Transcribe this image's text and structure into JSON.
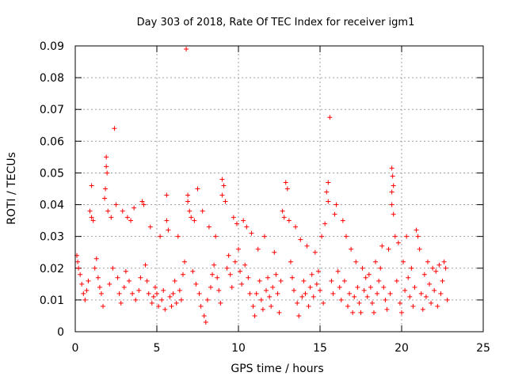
{
  "chart_data": {
    "type": "scatter",
    "title": "Day 303 of 2018, Rate Of TEC Index for receiver igm1",
    "xlabel": "GPS time / hours",
    "ylabel": "ROTI / TECUs",
    "xlim": [
      0,
      25
    ],
    "ylim": [
      0,
      0.09
    ],
    "xticks": [
      0,
      5,
      10,
      15,
      20,
      25
    ],
    "xtick_labels": [
      "0",
      "5",
      "10",
      "15",
      "20",
      "25"
    ],
    "yticks": [
      0,
      0.01,
      0.02,
      0.03,
      0.04,
      0.05,
      0.06,
      0.07,
      0.08,
      0.09
    ],
    "ytick_labels": [
      "0",
      "0.01",
      "0.02",
      "0.03",
      "0.04",
      "0.05",
      "0.06",
      "0.07",
      "0.08",
      "0.09"
    ],
    "grid": true,
    "marker": "+",
    "color": "#ff0000",
    "series": [
      {
        "name": "ROTI",
        "points": [
          [
            6.8,
            0.089
          ],
          [
            15.6,
            0.0675
          ],
          [
            2.4,
            0.064
          ],
          [
            1.9,
            0.055
          ],
          [
            1.9,
            0.052
          ],
          [
            1.95,
            0.05
          ],
          [
            19.4,
            0.0515
          ],
          [
            19.45,
            0.049
          ],
          [
            19.5,
            0.046
          ],
          [
            19.4,
            0.044
          ],
          [
            9.0,
            0.048
          ],
          [
            9.1,
            0.046
          ],
          [
            9.0,
            0.043
          ],
          [
            12.9,
            0.047
          ],
          [
            13.0,
            0.045
          ],
          [
            15.5,
            0.047
          ],
          [
            15.4,
            0.044
          ],
          [
            15.5,
            0.041
          ],
          [
            1.0,
            0.046
          ],
          [
            5.6,
            0.043
          ],
          [
            6.9,
            0.043
          ],
          [
            7.5,
            0.045
          ],
          [
            4.1,
            0.041
          ],
          [
            4.2,
            0.04
          ],
          [
            3.6,
            0.039
          ],
          [
            2.5,
            0.04
          ],
          [
            1.85,
            0.045
          ],
          [
            1.8,
            0.042
          ],
          [
            19.4,
            0.04
          ],
          [
            19.5,
            0.037
          ],
          [
            16.0,
            0.04
          ],
          [
            15.9,
            0.037
          ],
          [
            12.7,
            0.038
          ],
          [
            12.8,
            0.036
          ],
          [
            13.1,
            0.035
          ],
          [
            6.9,
            0.041
          ],
          [
            7.0,
            0.038
          ],
          [
            7.1,
            0.036
          ],
          [
            9.2,
            0.041
          ],
          [
            9.7,
            0.036
          ],
          [
            10.3,
            0.035
          ],
          [
            10.5,
            0.033
          ],
          [
            0.9,
            0.038
          ],
          [
            1.0,
            0.036
          ],
          [
            1.1,
            0.035
          ],
          [
            2.0,
            0.038
          ],
          [
            2.2,
            0.036
          ],
          [
            2.9,
            0.038
          ],
          [
            3.2,
            0.036
          ],
          [
            3.4,
            0.035
          ],
          [
            4.6,
            0.033
          ],
          [
            5.2,
            0.03
          ],
          [
            5.6,
            0.035
          ],
          [
            5.7,
            0.032
          ],
          [
            6.3,
            0.03
          ],
          [
            7.3,
            0.035
          ],
          [
            7.8,
            0.038
          ],
          [
            8.2,
            0.033
          ],
          [
            8.6,
            0.03
          ],
          [
            9.9,
            0.034
          ],
          [
            10.8,
            0.031
          ],
          [
            11.2,
            0.026
          ],
          [
            11.6,
            0.03
          ],
          [
            12.2,
            0.025
          ],
          [
            13.5,
            0.033
          ],
          [
            13.8,
            0.029
          ],
          [
            14.2,
            0.027
          ],
          [
            14.7,
            0.025
          ],
          [
            15.1,
            0.03
          ],
          [
            15.3,
            0.034
          ],
          [
            16.4,
            0.035
          ],
          [
            16.6,
            0.03
          ],
          [
            16.9,
            0.026
          ],
          [
            17.2,
            0.022
          ],
          [
            17.6,
            0.02
          ],
          [
            18.0,
            0.018
          ],
          [
            18.4,
            0.022
          ],
          [
            18.8,
            0.027
          ],
          [
            19.2,
            0.026
          ],
          [
            19.6,
            0.03
          ],
          [
            19.8,
            0.028
          ],
          [
            20.1,
            0.022
          ],
          [
            20.3,
            0.03
          ],
          [
            20.6,
            0.02
          ],
          [
            20.9,
            0.032
          ],
          [
            21.0,
            0.03
          ],
          [
            21.1,
            0.026
          ],
          [
            21.4,
            0.018
          ],
          [
            21.6,
            0.022
          ],
          [
            21.9,
            0.02
          ],
          [
            22.1,
            0.019
          ],
          [
            22.3,
            0.021
          ],
          [
            22.6,
            0.022
          ],
          [
            22.7,
            0.02
          ],
          [
            0.1,
            0.024
          ],
          [
            0.15,
            0.022
          ],
          [
            0.2,
            0.02
          ],
          [
            0.3,
            0.018
          ],
          [
            0.4,
            0.015
          ],
          [
            0.5,
            0.012
          ],
          [
            0.6,
            0.01
          ],
          [
            0.7,
            0.013
          ],
          [
            0.8,
            0.016
          ],
          [
            1.2,
            0.02
          ],
          [
            1.3,
            0.023
          ],
          [
            1.4,
            0.017
          ],
          [
            1.5,
            0.014
          ],
          [
            1.6,
            0.012
          ],
          [
            1.7,
            0.008
          ],
          [
            2.1,
            0.015
          ],
          [
            2.3,
            0.02
          ],
          [
            2.6,
            0.017
          ],
          [
            2.7,
            0.012
          ],
          [
            2.8,
            0.009
          ],
          [
            3.0,
            0.014
          ],
          [
            3.1,
            0.019
          ],
          [
            3.3,
            0.016
          ],
          [
            3.5,
            0.012
          ],
          [
            3.7,
            0.01
          ],
          [
            3.9,
            0.013
          ],
          [
            4.0,
            0.017
          ],
          [
            4.3,
            0.021
          ],
          [
            4.4,
            0.016
          ],
          [
            4.5,
            0.012
          ],
          [
            4.7,
            0.009
          ],
          [
            4.8,
            0.011
          ],
          [
            4.9,
            0.014
          ],
          [
            5.0,
            0.012
          ],
          [
            5.1,
            0.008
          ],
          [
            5.3,
            0.01
          ],
          [
            5.4,
            0.013
          ],
          [
            5.5,
            0.007
          ],
          [
            5.8,
            0.011
          ],
          [
            5.9,
            0.008
          ],
          [
            6.0,
            0.012
          ],
          [
            6.1,
            0.016
          ],
          [
            6.2,
            0.009
          ],
          [
            6.4,
            0.013
          ],
          [
            6.5,
            0.01
          ],
          [
            6.6,
            0.018
          ],
          [
            6.7,
            0.022
          ],
          [
            7.2,
            0.019
          ],
          [
            7.4,
            0.015
          ],
          [
            7.6,
            0.012
          ],
          [
            7.7,
            0.008
          ],
          [
            7.9,
            0.005
          ],
          [
            8.0,
            0.003
          ],
          [
            8.1,
            0.01
          ],
          [
            8.3,
            0.014
          ],
          [
            8.4,
            0.018
          ],
          [
            8.5,
            0.021
          ],
          [
            8.7,
            0.017
          ],
          [
            8.8,
            0.013
          ],
          [
            8.9,
            0.009
          ],
          [
            9.3,
            0.02
          ],
          [
            9.4,
            0.024
          ],
          [
            9.5,
            0.018
          ],
          [
            9.6,
            0.014
          ],
          [
            9.8,
            0.022
          ],
          [
            10.0,
            0.026
          ],
          [
            10.1,
            0.019
          ],
          [
            10.2,
            0.015
          ],
          [
            10.4,
            0.021
          ],
          [
            10.6,
            0.017
          ],
          [
            10.7,
            0.012
          ],
          [
            10.9,
            0.008
          ],
          [
            11.0,
            0.005
          ],
          [
            11.1,
            0.012
          ],
          [
            11.3,
            0.016
          ],
          [
            11.4,
            0.01
          ],
          [
            11.5,
            0.007
          ],
          [
            11.7,
            0.013
          ],
          [
            11.8,
            0.017
          ],
          [
            11.9,
            0.011
          ],
          [
            12.0,
            0.008
          ],
          [
            12.1,
            0.014
          ],
          [
            12.3,
            0.018
          ],
          [
            12.4,
            0.012
          ],
          [
            12.5,
            0.006
          ],
          [
            12.6,
            0.016
          ],
          [
            13.2,
            0.022
          ],
          [
            13.3,
            0.017
          ],
          [
            13.4,
            0.013
          ],
          [
            13.6,
            0.009
          ],
          [
            13.7,
            0.005
          ],
          [
            13.9,
            0.011
          ],
          [
            14.0,
            0.016
          ],
          [
            14.1,
            0.012
          ],
          [
            14.3,
            0.008
          ],
          [
            14.4,
            0.014
          ],
          [
            14.5,
            0.018
          ],
          [
            14.6,
            0.011
          ],
          [
            14.8,
            0.015
          ],
          [
            14.9,
            0.019
          ],
          [
            15.0,
            0.013
          ],
          [
            15.2,
            0.009
          ],
          [
            15.7,
            0.016
          ],
          [
            15.8,
            0.012
          ],
          [
            16.1,
            0.019
          ],
          [
            16.2,
            0.014
          ],
          [
            16.3,
            0.01
          ],
          [
            16.5,
            0.016
          ],
          [
            16.7,
            0.008
          ],
          [
            16.8,
            0.012
          ],
          [
            17.0,
            0.006
          ],
          [
            17.1,
            0.011
          ],
          [
            17.3,
            0.014
          ],
          [
            17.4,
            0.009
          ],
          [
            17.5,
            0.006
          ],
          [
            17.7,
            0.013
          ],
          [
            17.8,
            0.017
          ],
          [
            17.9,
            0.011
          ],
          [
            18.1,
            0.014
          ],
          [
            18.2,
            0.009
          ],
          [
            18.3,
            0.006
          ],
          [
            18.5,
            0.012
          ],
          [
            18.6,
            0.016
          ],
          [
            18.7,
            0.02
          ],
          [
            18.9,
            0.014
          ],
          [
            19.0,
            0.01
          ],
          [
            19.1,
            0.007
          ],
          [
            19.3,
            0.012
          ],
          [
            19.7,
            0.016
          ],
          [
            19.9,
            0.009
          ],
          [
            20.0,
            0.006
          ],
          [
            20.2,
            0.013
          ],
          [
            20.4,
            0.017
          ],
          [
            20.5,
            0.011
          ],
          [
            20.7,
            0.008
          ],
          [
            20.8,
            0.014
          ],
          [
            21.2,
            0.012
          ],
          [
            21.3,
            0.007
          ],
          [
            21.5,
            0.011
          ],
          [
            21.7,
            0.015
          ],
          [
            21.8,
            0.009
          ],
          [
            22.0,
            0.013
          ],
          [
            22.2,
            0.008
          ],
          [
            22.4,
            0.012
          ],
          [
            22.5,
            0.016
          ],
          [
            22.8,
            0.01
          ]
        ]
      }
    ]
  }
}
